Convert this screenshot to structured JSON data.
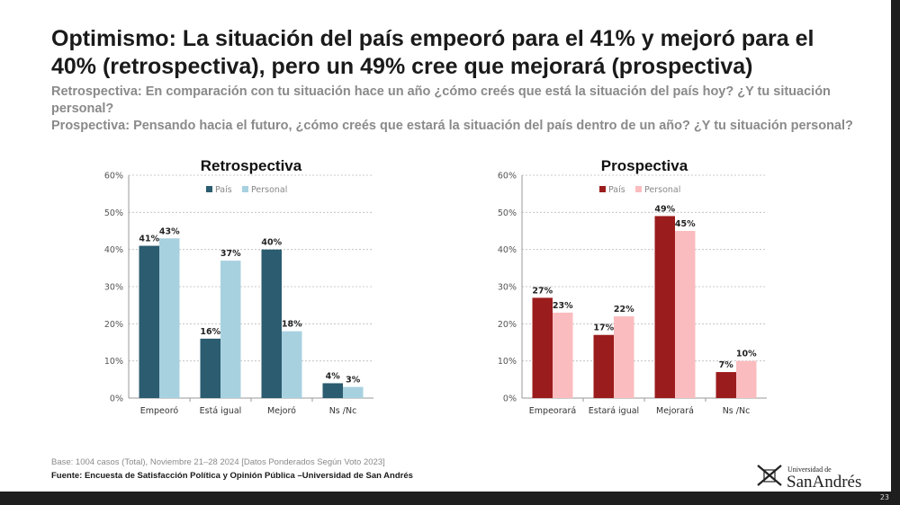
{
  "title": "Optimismo: La situación del país empeoró para el 41% y mejoró para el 40% (retrospectiva), pero un 49% cree que mejorará (prospectiva)",
  "subtitle_lines": [
    "Retrospectiva: En comparación con tu situación hace un año ¿cómo creés que está la situación del país hoy? ¿Y tu situación personal?",
    "Prospectiva: Pensando hacia el futuro, ¿cómo creés que estará la situación del país dentro de un año? ¿Y tu situación personal?"
  ],
  "footer": {
    "base": "Base: 1004 casos (Total), Noviembre 21–28 2024 [Datos Ponderados Según Voto 2023]",
    "fuente": "Fuente: Encuesta de Satisfacción Política y Opinión Pública –Universidad de San Andrés",
    "logo_small": "Universidad de",
    "logo_big": "SanAndrés",
    "page": "23"
  },
  "chart_data": [
    {
      "type": "bar",
      "title": "Retrospectiva",
      "categories": [
        "Empeoró",
        "Está igual",
        "Mejoró",
        "Ns /Nc"
      ],
      "series": [
        {
          "name": "País",
          "values": [
            41,
            16,
            40,
            4
          ],
          "labels": [
            "41%",
            "16%",
            "40%",
            "4%"
          ],
          "color": "#2b5c70"
        },
        {
          "name": "Personal",
          "values": [
            43,
            37,
            18,
            3
          ],
          "labels": [
            "43%",
            "37%",
            "18%",
            "3%"
          ],
          "color": "#a8d1e0"
        }
      ],
      "yticks": [
        "0%",
        "10%",
        "20%",
        "30%",
        "40%",
        "50%",
        "60%"
      ],
      "ylim": [
        0,
        60
      ],
      "grid": true,
      "legend": "top-center"
    },
    {
      "type": "bar",
      "title": "Prospectiva",
      "categories": [
        "Empeorará",
        "Estará igual",
        "Mejorará",
        "Ns /Nc"
      ],
      "series": [
        {
          "name": "País",
          "values": [
            27,
            17,
            49,
            7
          ],
          "labels": [
            "27%",
            "17%",
            "49%",
            "7%"
          ],
          "color": "#9b1c1c"
        },
        {
          "name": "Personal",
          "values": [
            23,
            22,
            45,
            10
          ],
          "labels": [
            "23%",
            "22%",
            "45%",
            "10%"
          ],
          "color": "#fbbcbf"
        }
      ],
      "yticks": [
        "0%",
        "10%",
        "20%",
        "30%",
        "40%",
        "50%",
        "60%"
      ],
      "ylim": [
        0,
        60
      ],
      "grid": true,
      "legend": "top-center"
    }
  ]
}
